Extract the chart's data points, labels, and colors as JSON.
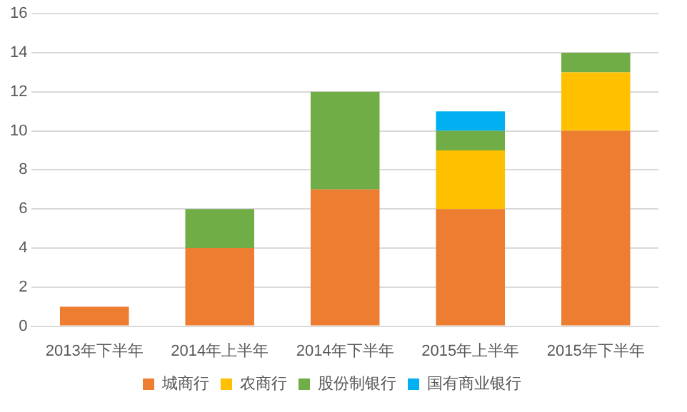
{
  "chart_data": {
    "type": "bar",
    "stacked": true,
    "categories": [
      "2013年下半年",
      "2014年上半年",
      "2014年下半年",
      "2015年上半年",
      "2015年下半年"
    ],
    "series": [
      {
        "name": "城商行",
        "color": "#ed7d31",
        "values": [
          1,
          4,
          7,
          6,
          10
        ]
      },
      {
        "name": "农商行",
        "color": "#ffc000",
        "values": [
          0,
          0,
          0,
          3,
          3
        ]
      },
      {
        "name": "股份制银行",
        "color": "#70ad47",
        "values": [
          0,
          2,
          5,
          1,
          1
        ]
      },
      {
        "name": "国有商业银行",
        "color": "#00b0f0",
        "values": [
          0,
          0,
          0,
          1,
          0
        ]
      }
    ],
    "ylim": [
      0,
      16
    ],
    "yticks": [
      0,
      2,
      4,
      6,
      8,
      10,
      12,
      14,
      16
    ],
    "grid": "y",
    "legend": "bottom"
  }
}
